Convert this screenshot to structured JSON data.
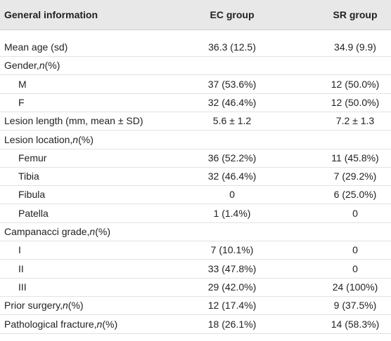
{
  "table": {
    "header": [
      "General information",
      "EC group",
      "SR group"
    ],
    "rows": [
      {
        "label": [
          "Mean age (sd)"
        ],
        "ec": "36.3 (12.5)",
        "sr": "34.9 (9.9)"
      },
      {
        "label": [
          "Gender, ",
          "n",
          " (%)"
        ],
        "children": [
          {
            "label": [
              "M"
            ],
            "ec": "37 (53.6%)",
            "sr": "12 (50.0%)"
          },
          {
            "label": [
              "F"
            ],
            "ec": "32 (46.4%)",
            "sr": "12 (50.0%)"
          }
        ]
      },
      {
        "label": [
          "Lesion length (mm, mean ± SD)"
        ],
        "ec": "5.6 ± 1.2",
        "sr": "7.2 ± 1.3"
      },
      {
        "label": [
          "Lesion location, ",
          "n",
          " (%)"
        ],
        "children": [
          {
            "label": [
              "Femur"
            ],
            "ec": "36 (52.2%)",
            "sr": "11 (45.8%)"
          },
          {
            "label": [
              "Tibia"
            ],
            "ec": "32 (46.4%)",
            "sr": "7 (29.2%)"
          },
          {
            "label": [
              "Fibula"
            ],
            "ec": "0",
            "sr": "6 (25.0%)"
          },
          {
            "label": [
              "Patella"
            ],
            "ec": "1 (1.4%)",
            "sr": "0"
          }
        ]
      },
      {
        "label": [
          "Campanacci grade, ",
          "n",
          " (%)"
        ],
        "children": [
          {
            "label": [
              "I"
            ],
            "ec": "7 (10.1%)",
            "sr": "0"
          },
          {
            "label": [
              "II"
            ],
            "ec": "33 (47.8%)",
            "sr": "0"
          },
          {
            "label": [
              "III"
            ],
            "ec": "29 (42.0%)",
            "sr": "24 (100%)"
          }
        ]
      },
      {
        "label": [
          "Prior surgery, ",
          "n",
          " (%)"
        ],
        "ec": "12 (17.4%)",
        "sr": "9 (37.5%)"
      },
      {
        "label": [
          "Pathological fracture, ",
          "n",
          " (%)"
        ],
        "ec": "18 (26.1%)",
        "sr": "14 (58.3%)"
      }
    ]
  }
}
